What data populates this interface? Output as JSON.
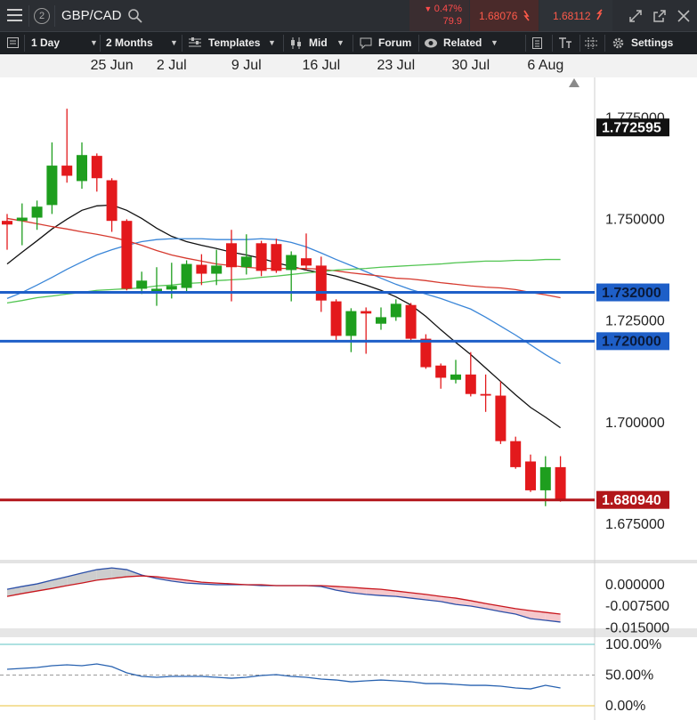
{
  "toolbar": {
    "account": "2",
    "symbol": "GBP/CAD",
    "change_pct": "0.47%",
    "change_pts": "79.9",
    "sell": "1.68076",
    "buy": "1.68112",
    "interval": "1 Day",
    "range": "2 Months",
    "templates": "Templates",
    "price": "Mid",
    "forum": "Forum",
    "related": "Related",
    "settings": "Settings"
  },
  "chart_data": [
    {
      "type": "candlestick",
      "categories": [
        null,
        null,
        null,
        null,
        null,
        null,
        null,
        "25 Jun",
        null,
        null,
        null,
        "2 Jul",
        null,
        null,
        null,
        null,
        "9 Jul",
        null,
        null,
        null,
        null,
        "16 Jul",
        null,
        null,
        null,
        null,
        "23 Jul",
        null,
        null,
        null,
        null,
        "30 Jul",
        null,
        null,
        null,
        null,
        "6 Aug",
        null
      ],
      "open": [
        1.7496,
        1.7496,
        1.7504,
        1.7535,
        1.7632,
        1.7594,
        1.7656,
        1.7596,
        1.7496,
        1.7329,
        1.7322,
        1.7327,
        1.7331,
        1.7388,
        1.7366,
        1.7441,
        1.7382,
        1.7441,
        1.7439,
        1.7375,
        1.7404,
        1.7386,
        1.7298,
        1.7213,
        1.7274,
        1.7243,
        1.7259,
        1.7289,
        1.7206,
        1.714,
        1.7105,
        1.7118,
        1.707,
        1.7066,
        1.6954,
        1.6904,
        1.6833,
        1.689
      ],
      "high": [
        1.7513,
        1.7539,
        1.7546,
        1.7689,
        1.7772,
        1.7689,
        1.7662,
        1.7601,
        1.75,
        1.7371,
        1.7382,
        1.7393,
        1.7399,
        1.7414,
        1.7425,
        1.7474,
        1.7463,
        1.7447,
        1.7452,
        1.7421,
        1.7465,
        1.7408,
        1.7303,
        1.7281,
        1.7283,
        1.7283,
        1.7303,
        1.7294,
        1.7217,
        1.7145,
        1.7154,
        1.7173,
        1.7118,
        1.7101,
        1.6965,
        1.6921,
        1.6917,
        1.6917
      ],
      "low": [
        1.7425,
        1.7436,
        1.7474,
        1.7513,
        1.759,
        1.7575,
        1.7568,
        1.7469,
        1.7325,
        1.7316,
        1.7287,
        1.7305,
        1.7322,
        1.7338,
        1.7338,
        1.7298,
        1.7364,
        1.736,
        1.7368,
        1.7298,
        1.7375,
        1.7272,
        1.7202,
        1.7173,
        1.7169,
        1.7228,
        1.725,
        1.7197,
        1.7132,
        1.7083,
        1.7096,
        1.7064,
        1.7026,
        1.6947,
        1.6886,
        1.6829,
        1.6794,
        1.6805
      ],
      "close": [
        1.7487,
        1.7504,
        1.7531,
        1.7632,
        1.7607,
        1.7658,
        1.7601,
        1.7496,
        1.7329,
        1.7349,
        1.7329,
        1.7336,
        1.739,
        1.7366,
        1.7386,
        1.7382,
        1.7408,
        1.7373,
        1.7373,
        1.7412,
        1.7386,
        1.73,
        1.7213,
        1.7274,
        1.7268,
        1.7259,
        1.7292,
        1.7206,
        1.7136,
        1.711,
        1.7118,
        1.707,
        1.7066,
        1.6954,
        1.689,
        1.6833,
        1.689,
        1.6809
      ],
      "up_color": "#1e9e1e",
      "down_color": "#e3191c",
      "series": [
        {
          "color": "#111111",
          "values": [
            1.739,
            1.7419,
            1.7447,
            1.7476,
            1.75,
            1.7522,
            1.7533,
            1.7535,
            1.7522,
            1.7502,
            1.7478,
            1.7458,
            1.7445,
            1.7436,
            1.7428,
            1.7419,
            1.7412,
            1.7404,
            1.7393,
            1.7384,
            1.7375,
            1.7368,
            1.736,
            1.7349,
            1.7338,
            1.7325,
            1.7309,
            1.7289,
            1.7261,
            1.7228,
            1.7197,
            1.7167,
            1.7134,
            1.7101,
            1.7068,
            1.7037,
            1.7013,
            1.6987
          ]
        },
        {
          "color": "#3a86d8",
          "values": [
            1.7305,
            1.732,
            1.7338,
            1.7357,
            1.7377,
            1.7395,
            1.7412,
            1.7425,
            1.7436,
            1.7445,
            1.745,
            1.7452,
            1.7452,
            1.7452,
            1.745,
            1.745,
            1.745,
            1.7452,
            1.745,
            1.7443,
            1.7432,
            1.7417,
            1.7401,
            1.7386,
            1.7371,
            1.7355,
            1.734,
            1.7327,
            1.7316,
            1.7305,
            1.7292,
            1.7279,
            1.7259,
            1.7237,
            1.7215,
            1.7191,
            1.7167,
            1.7145
          ]
        },
        {
          "color": "#d63a2f",
          "values": [
            1.7502,
            1.7496,
            1.7489,
            1.7482,
            1.7476,
            1.7469,
            1.7463,
            1.7456,
            1.7447,
            1.7436,
            1.7423,
            1.7412,
            1.7404,
            1.7397,
            1.739,
            1.7386,
            1.7382,
            1.7379,
            1.7379,
            1.7379,
            1.7379,
            1.7377,
            1.7373,
            1.7368,
            1.7364,
            1.736,
            1.7355,
            1.7353,
            1.7349,
            1.7344,
            1.734,
            1.7336,
            1.7333,
            1.7331,
            1.7327,
            1.732,
            1.7314,
            1.7307
          ]
        },
        {
          "color": "#52c552",
          "values": [
            1.7294,
            1.73,
            1.7307,
            1.7311,
            1.7316,
            1.732,
            1.7325,
            1.7327,
            1.7329,
            1.7331,
            1.7336,
            1.7338,
            1.7342,
            1.7344,
            1.7349,
            1.7351,
            1.7353,
            1.7357,
            1.736,
            1.7364,
            1.7368,
            1.7371,
            1.7375,
            1.7377,
            1.7379,
            1.7382,
            1.7384,
            1.7386,
            1.7388,
            1.739,
            1.7393,
            1.7395,
            1.7397,
            1.7397,
            1.7399,
            1.7399,
            1.7401,
            1.7401
          ]
        }
      ],
      "levels": [
        {
          "value": 1.772595,
          "label": "1.772595",
          "color": "#111111",
          "text_color": "#ffffff",
          "line": false
        },
        {
          "value": 1.732,
          "label": "1.732000",
          "color": "#1e5fc8",
          "text_color": "#0a1a3a",
          "line": true
        },
        {
          "value": 1.72,
          "label": "1.720000",
          "color": "#1e5fc8",
          "text_color": "#0a1a3a",
          "line": true
        },
        {
          "value": 1.68094,
          "label": "1.680940",
          "color": "#b2161a",
          "text_color": "#ffffff",
          "line": true
        }
      ],
      "ylim": [
        1.6662,
        1.7849
      ],
      "yticks": [
        {
          "value": 1.675,
          "label": "1.675000"
        },
        {
          "value": 1.7,
          "label": "1.700000"
        },
        {
          "value": 1.725,
          "label": "1.725000"
        },
        {
          "value": 1.75,
          "label": "1.750000"
        },
        {
          "value": 1.775,
          "label": "1.775000"
        }
      ]
    },
    {
      "type": "line",
      "series": [
        {
          "color": "#2b4fa8",
          "values": [
            -0.0016,
            -0.0006,
            0.0003,
            0.0016,
            0.0028,
            0.0041,
            0.0053,
            0.0059,
            0.0053,
            0.0034,
            0.0022,
            0.0013,
            0.0006,
            0.0003,
            0,
            0,
            0,
            -0.0003,
            -0.0003,
            -0.0003,
            -0.0003,
            -0.0006,
            -0.0019,
            -0.0028,
            -0.0034,
            -0.0038,
            -0.0041,
            -0.0047,
            -0.0053,
            -0.0059,
            -0.0069,
            -0.0075,
            -0.0084,
            -0.0094,
            -0.0103,
            -0.0119,
            -0.0125,
            -0.0131
          ]
        },
        {
          "color": "#c8161d",
          "values": [
            -0.0041,
            -0.0031,
            -0.0022,
            -0.0013,
            -0.0003,
            0.0006,
            0.0016,
            0.0022,
            0.0028,
            0.0031,
            0.0028,
            0.0022,
            0.0016,
            0.0009,
            0.0006,
            0.0003,
            0,
            0,
            -0.0003,
            -0.0003,
            -0.0003,
            -0.0003,
            -0.0006,
            -0.0009,
            -0.0013,
            -0.0016,
            -0.0022,
            -0.0028,
            -0.0034,
            -0.0041,
            -0.0047,
            -0.0056,
            -0.0066,
            -0.0075,
            -0.0084,
            -0.0091,
            -0.0097,
            -0.0103
          ]
        }
      ],
      "ylim": [
        -0.0153,
        0.0075
      ],
      "yticks": [
        {
          "value": -0.015,
          "label": "-0.015000"
        },
        {
          "value": -0.0075,
          "label": "-0.007500"
        },
        {
          "value": 0,
          "label": "0.000000"
        }
      ]
    },
    {
      "type": "line",
      "series": [
        {
          "color": "#2862b0",
          "values": [
            59.4,
            60.9,
            62.3,
            65.2,
            66.7,
            65.2,
            68.1,
            63.8,
            53.6,
            47.8,
            46.4,
            47.8,
            47.8,
            47.8,
            46.4,
            44.9,
            46.4,
            49.3,
            50.7,
            47.8,
            46.4,
            43.5,
            42.0,
            39.1,
            40.6,
            42.0,
            40.6,
            39.1,
            36.2,
            36.2,
            34.8,
            33.3,
            33.3,
            31.9,
            29.0,
            27.5,
            33.3,
            29.0
          ]
        }
      ],
      "ylim": [
        -10.1,
        111.6
      ],
      "yticks": [
        {
          "value": 0,
          "label": "0.00%"
        },
        {
          "value": 50,
          "label": "50.00%"
        },
        {
          "value": 100,
          "label": "100.00%"
        }
      ],
      "grid": true,
      "grid_colors": [
        "#e8c23a",
        "#9a9a9a",
        "#5cc3c3"
      ]
    }
  ]
}
